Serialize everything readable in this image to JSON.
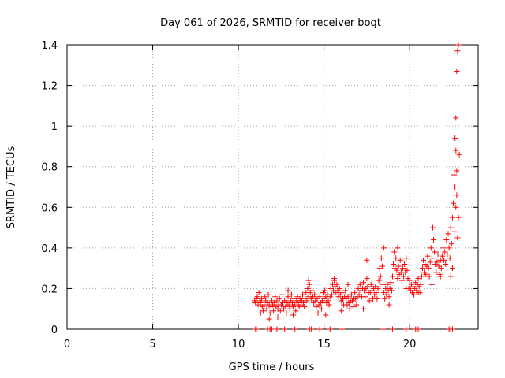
{
  "chart_data": {
    "type": "scatter",
    "title": "Day 061 of 2026, SRMTID for receiver bogt",
    "xlabel": "GPS time / hours",
    "ylabel": "SRMTID / TECUs",
    "xlim": [
      0,
      24
    ],
    "ylim": [
      0,
      1.4
    ],
    "xticks": [
      0,
      5,
      10,
      15,
      20
    ],
    "yticks": [
      0,
      0.2,
      0.4,
      0.6,
      0.8,
      1,
      1.2,
      1.4
    ],
    "ytick_labels": [
      "0",
      "0.2",
      "0.4",
      "0.6",
      "0.8",
      "1",
      "1.2",
      "1.4"
    ],
    "grid": true,
    "marker": "+",
    "color": "#ff0000",
    "series": [
      {
        "name": "SRMTID",
        "points": [
          [
            10.95,
            0.14
          ],
          [
            11.0,
            0.13
          ],
          [
            11.05,
            0.15
          ],
          [
            11.1,
            0.16
          ],
          [
            11.15,
            0.12
          ],
          [
            11.2,
            0.18
          ],
          [
            11.25,
            0.14
          ],
          [
            11.3,
            0.13
          ],
          [
            11.35,
            0.15
          ],
          [
            11.4,
            0.11
          ],
          [
            11.45,
            0.09
          ],
          [
            11.5,
            0.12
          ],
          [
            11.55,
            0.16
          ],
          [
            11.6,
            0.14
          ],
          [
            11.65,
            0.1
          ],
          [
            11.7,
            0.13
          ],
          [
            11.75,
            0.17
          ],
          [
            11.8,
            0.12
          ],
          [
            11.85,
            0.08
          ],
          [
            11.9,
            0.11
          ],
          [
            11.95,
            0.14
          ],
          [
            12.0,
            0.12
          ],
          [
            12.05,
            0.09
          ],
          [
            12.1,
            0.13
          ],
          [
            12.15,
            0.16
          ],
          [
            12.2,
            0.11
          ],
          [
            12.25,
            0.14
          ],
          [
            12.3,
            0.1
          ],
          [
            12.35,
            0.12
          ],
          [
            12.4,
            0.15
          ],
          [
            12.45,
            0.09
          ],
          [
            12.5,
            0.12
          ],
          [
            12.55,
            0.17
          ],
          [
            12.6,
            0.13
          ],
          [
            12.65,
            0.1
          ],
          [
            12.7,
            0.14
          ],
          [
            12.75,
            0.11
          ],
          [
            12.8,
            0.08
          ],
          [
            12.85,
            0.13
          ],
          [
            12.9,
            0.16
          ],
          [
            12.95,
            0.12
          ],
          [
            13.0,
            0.1
          ],
          [
            13.05,
            0.14
          ],
          [
            13.1,
            0.17
          ],
          [
            13.15,
            0.13
          ],
          [
            13.2,
            0.11
          ],
          [
            13.25,
            0.15
          ],
          [
            13.3,
            0.12
          ],
          [
            13.35,
            0.09
          ],
          [
            13.4,
            0.14
          ],
          [
            13.45,
            0.16
          ],
          [
            13.5,
            0.13
          ],
          [
            13.55,
            0.11
          ],
          [
            13.6,
            0.15
          ],
          [
            13.65,
            0.12
          ],
          [
            13.7,
            0.14
          ],
          [
            13.75,
            0.17
          ],
          [
            13.8,
            0.13
          ],
          [
            13.85,
            0.11
          ],
          [
            13.9,
            0.15
          ],
          [
            13.95,
            0.18
          ],
          [
            14.0,
            0.14
          ],
          [
            14.05,
            0.2
          ],
          [
            14.1,
            0.16
          ],
          [
            14.15,
            0.22
          ],
          [
            14.2,
            0.18
          ],
          [
            14.25,
            0.15
          ],
          [
            14.3,
            0.19
          ],
          [
            14.35,
            0.16
          ],
          [
            14.4,
            0.13
          ],
          [
            14.45,
            0.17
          ],
          [
            14.5,
            0.14
          ],
          [
            14.55,
            0.11
          ],
          [
            14.6,
            0.15
          ],
          [
            14.65,
            0.08
          ],
          [
            14.7,
            0.12
          ],
          [
            14.75,
            0.16
          ],
          [
            14.8,
            0.13
          ],
          [
            14.85,
            0.1
          ],
          [
            14.9,
            0.14
          ],
          [
            14.95,
            0.18
          ],
          [
            15.0,
            0.15
          ],
          [
            15.05,
            0.19
          ],
          [
            15.1,
            0.16
          ],
          [
            15.15,
            0.13
          ],
          [
            15.2,
            0.17
          ],
          [
            15.25,
            0.14
          ],
          [
            15.3,
            0.12
          ],
          [
            15.35,
            0.16
          ],
          [
            15.4,
            0.2
          ],
          [
            15.45,
            0.17
          ],
          [
            15.5,
            0.22
          ],
          [
            15.55,
            0.19
          ],
          [
            15.6,
            0.24
          ],
          [
            15.65,
            0.21
          ],
          [
            15.7,
            0.18
          ],
          [
            15.75,
            0.22
          ],
          [
            15.8,
            0.19
          ],
          [
            15.85,
            0.16
          ],
          [
            15.9,
            0.2
          ],
          [
            15.95,
            0.17
          ],
          [
            16.0,
            0.14
          ],
          [
            16.05,
            0.18
          ],
          [
            16.1,
            0.15
          ],
          [
            16.15,
            0.12
          ],
          [
            16.2,
            0.16
          ],
          [
            16.25,
            0.19
          ],
          [
            16.3,
            0.15
          ],
          [
            16.35,
            0.12
          ],
          [
            16.4,
            0.16
          ],
          [
            16.45,
            0.13
          ],
          [
            16.5,
            0.1
          ],
          [
            16.55,
            0.14
          ],
          [
            16.6,
            0.17
          ],
          [
            16.65,
            0.14
          ],
          [
            16.7,
            0.11
          ],
          [
            16.75,
            0.15
          ],
          [
            16.8,
            0.18
          ],
          [
            16.85,
            0.15
          ],
          [
            16.9,
            0.12
          ],
          [
            16.95,
            0.16
          ],
          [
            17.0,
            0.2
          ],
          [
            17.05,
            0.17
          ],
          [
            17.1,
            0.22
          ],
          [
            17.15,
            0.19
          ],
          [
            17.2,
            0.16
          ],
          [
            17.25,
            0.2
          ],
          [
            17.3,
            0.23
          ],
          [
            17.35,
            0.19
          ],
          [
            17.4,
            0.16
          ],
          [
            17.45,
            0.2
          ],
          [
            17.5,
            0.25
          ],
          [
            17.55,
            0.21
          ],
          [
            17.6,
            0.18
          ],
          [
            17.65,
            0.14
          ],
          [
            17.7,
            0.18
          ],
          [
            17.75,
            0.22
          ],
          [
            17.8,
            0.19
          ],
          [
            17.85,
            0.15
          ],
          [
            17.9,
            0.2
          ],
          [
            17.95,
            0.17
          ],
          [
            18.0,
            0.21
          ],
          [
            18.05,
            0.18
          ],
          [
            18.1,
            0.15
          ],
          [
            18.15,
            0.2
          ],
          [
            18.2,
            0.24
          ],
          [
            18.25,
            0.3
          ],
          [
            18.3,
            0.26
          ],
          [
            18.35,
            0.35
          ],
          [
            18.4,
            0.31
          ],
          [
            18.45,
            0.22
          ],
          [
            18.5,
            0.18
          ],
          [
            18.55,
            0.15
          ],
          [
            18.6,
            0.2
          ],
          [
            18.65,
            0.17
          ],
          [
            18.7,
            0.22
          ],
          [
            18.75,
            0.19
          ],
          [
            18.8,
            0.16
          ],
          [
            18.85,
            0.2
          ],
          [
            18.9,
            0.23
          ],
          [
            18.95,
            0.19
          ],
          [
            19.0,
            0.26
          ],
          [
            19.05,
            0.32
          ],
          [
            19.1,
            0.38
          ],
          [
            19.15,
            0.3
          ],
          [
            19.2,
            0.35
          ],
          [
            19.25,
            0.29
          ],
          [
            19.3,
            0.25
          ],
          [
            19.35,
            0.31
          ],
          [
            19.4,
            0.27
          ],
          [
            19.45,
            0.34
          ],
          [
            19.5,
            0.28
          ],
          [
            19.55,
            0.24
          ],
          [
            19.6,
            0.3
          ],
          [
            19.65,
            0.26
          ],
          [
            19.7,
            0.32
          ],
          [
            19.75,
            0.28
          ],
          [
            19.8,
            0.35
          ],
          [
            19.85,
            0.29
          ],
          [
            19.9,
            0.25
          ],
          [
            19.95,
            0.2
          ],
          [
            20.0,
            0.24
          ],
          [
            20.05,
            0.19
          ],
          [
            20.1,
            0.22
          ],
          [
            20.15,
            0.18
          ],
          [
            20.2,
            0.21
          ],
          [
            20.25,
            0.17
          ],
          [
            20.3,
            0.2
          ],
          [
            20.35,
            0.23
          ],
          [
            20.4,
            0.19
          ],
          [
            20.45,
            0.22
          ],
          [
            20.5,
            0.25
          ],
          [
            20.55,
            0.21
          ],
          [
            20.6,
            0.18
          ],
          [
            20.65,
            0.22
          ],
          [
            20.7,
            0.26
          ],
          [
            20.75,
            0.3
          ],
          [
            20.8,
            0.34
          ],
          [
            20.85,
            0.28
          ],
          [
            20.9,
            0.32
          ],
          [
            20.95,
            0.27
          ],
          [
            21.0,
            0.31
          ],
          [
            21.05,
            0.36
          ],
          [
            21.1,
            0.3
          ],
          [
            21.15,
            0.26
          ],
          [
            21.2,
            0.33
          ],
          [
            21.25,
            0.4
          ],
          [
            21.3,
            0.35
          ],
          [
            21.35,
            0.5
          ],
          [
            21.4,
            0.44
          ],
          [
            21.45,
            0.38
          ],
          [
            21.5,
            0.32
          ],
          [
            21.55,
            0.28
          ],
          [
            21.6,
            0.33
          ],
          [
            21.65,
            0.37
          ],
          [
            21.7,
            0.31
          ],
          [
            21.75,
            0.27
          ],
          [
            21.8,
            0.34
          ],
          [
            21.85,
            0.3
          ],
          [
            21.9,
            0.36
          ],
          [
            21.95,
            0.4
          ],
          [
            22.0,
            0.34
          ],
          [
            22.05,
            0.38
          ],
          [
            22.1,
            0.32
          ],
          [
            22.15,
            0.44
          ],
          [
            22.2,
            0.37
          ],
          [
            22.25,
            0.47
          ],
          [
            22.3,
            0.4
          ],
          [
            22.35,
            0.35
          ],
          [
            22.4,
            0.5
          ],
          [
            22.45,
            0.42
          ],
          [
            22.5,
            0.55
          ],
          [
            22.55,
            0.62
          ],
          [
            22.6,
            0.48
          ],
          [
            22.65,
            0.7
          ],
          [
            22.7,
            0.6
          ],
          [
            22.75,
            0.78
          ],
          [
            22.8,
            0.45
          ],
          [
            22.85,
            0.55
          ],
          [
            22.9,
            0.86
          ],
          [
            22.4,
            0.26
          ],
          [
            22.5,
            0.3
          ],
          [
            22.6,
            0.76
          ],
          [
            22.65,
            0.94
          ],
          [
            22.7,
            1.04
          ],
          [
            22.75,
            1.27
          ],
          [
            22.8,
            1.37
          ],
          [
            22.85,
            1.4
          ],
          [
            22.7,
            0.88
          ],
          [
            22.75,
            0.66
          ],
          [
            21.3,
            0.22
          ],
          [
            21.8,
            0.26
          ],
          [
            20.5,
            0.18
          ],
          [
            19.8,
            0.2
          ],
          [
            18.8,
            0.12
          ],
          [
            17.3,
            0.1
          ],
          [
            16.0,
            0.09
          ],
          [
            15.1,
            0.07
          ],
          [
            14.3,
            0.06
          ],
          [
            13.2,
            0.07
          ],
          [
            12.3,
            0.06
          ],
          [
            11.8,
            0.05
          ],
          [
            11.3,
            0.08
          ],
          [
            19.3,
            0.4
          ],
          [
            18.5,
            0.4
          ],
          [
            17.5,
            0.34
          ],
          [
            16.4,
            0.22
          ],
          [
            15.6,
            0.25
          ],
          [
            14.1,
            0.24
          ],
          [
            12.9,
            0.19
          ],
          [
            11.0,
            0.0
          ],
          [
            11.05,
            0.0
          ],
          [
            11.7,
            0.0
          ],
          [
            11.85,
            0.0
          ],
          [
            11.95,
            0.0
          ],
          [
            12.25,
            0.0
          ],
          [
            12.7,
            0.0
          ],
          [
            13.3,
            0.0
          ],
          [
            14.15,
            0.0
          ],
          [
            14.25,
            0.0
          ],
          [
            14.75,
            0.0
          ],
          [
            15.35,
            0.0
          ],
          [
            16.05,
            0.0
          ],
          [
            18.45,
            0.0
          ],
          [
            19.0,
            0.0
          ],
          [
            19.8,
            0.0
          ],
          [
            20.35,
            0.0
          ],
          [
            20.5,
            0.0
          ],
          [
            22.3,
            0.0
          ],
          [
            22.4,
            0.0
          ],
          [
            22.5,
            0.0
          ]
        ]
      }
    ]
  }
}
